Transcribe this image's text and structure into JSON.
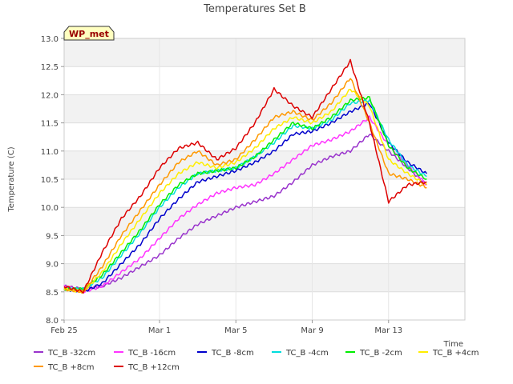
{
  "chart_data": {
    "type": "line",
    "title": "Temperatures Set B",
    "xlabel": "Time",
    "ylabel": "Temperature (C)",
    "annotation": "WP_met",
    "xlim": [
      "2024-02-25",
      "2024-03-17"
    ],
    "ylim": [
      8.0,
      13.0
    ],
    "x_ticks": [
      {
        "date": "2024-02-25",
        "label": "Feb 25"
      },
      {
        "date": "2024-03-01",
        "label": "Mar 1"
      },
      {
        "date": "2024-03-05",
        "label": "Mar 5"
      },
      {
        "date": "2024-03-09",
        "label": "Mar 9"
      },
      {
        "date": "2024-03-13",
        "label": "Mar 13"
      }
    ],
    "y_ticks": [
      8.0,
      8.5,
      9.0,
      9.5,
      10.0,
      10.5,
      11.0,
      11.5,
      12.0,
      12.5,
      13.0
    ],
    "y_tick_labels": [
      "8.0",
      "8.5",
      "9.0",
      "9.5",
      "10.0",
      "10.5",
      "11.0",
      "11.5",
      "12.0",
      "12.5",
      "13.0"
    ],
    "grid": true,
    "legend_position": "bottom",
    "series": [
      {
        "name": "TC_B -32cm",
        "color": "#9933cc",
        "x": [
          "2024-02-25",
          "2024-02-26",
          "2024-02-27",
          "2024-02-28",
          "2024-02-29",
          "2024-03-01",
          "2024-03-02",
          "2024-03-03",
          "2024-03-04",
          "2024-03-05",
          "2024-03-06",
          "2024-03-07",
          "2024-03-08",
          "2024-03-09",
          "2024-03-10",
          "2024-03-11",
          "2024-03-12",
          "2024-03-13",
          "2024-03-14",
          "2024-03-15"
        ],
        "y": [
          8.6,
          8.55,
          8.6,
          8.75,
          8.95,
          9.15,
          9.45,
          9.7,
          9.85,
          10.0,
          10.1,
          10.2,
          10.45,
          10.75,
          10.9,
          11.0,
          11.3,
          11.0,
          10.7,
          10.4
        ]
      },
      {
        "name": "TC_B +8cm",
        "color": "#ff9900",
        "x": [
          "2024-02-25",
          "2024-02-26",
          "2024-02-27",
          "2024-02-28",
          "2024-02-29",
          "2024-03-01",
          "2024-03-02",
          "2024-03-03",
          "2024-03-04",
          "2024-03-05",
          "2024-03-06",
          "2024-03-07",
          "2024-03-08",
          "2024-03-09",
          "2024-03-10",
          "2024-03-11",
          "2024-03-12",
          "2024-03-13",
          "2024-03-14",
          "2024-03-15"
        ],
        "y": [
          8.55,
          8.5,
          8.95,
          9.5,
          9.95,
          10.4,
          10.8,
          11.0,
          10.75,
          10.85,
          11.2,
          11.6,
          11.7,
          11.55,
          11.85,
          12.3,
          11.5,
          10.6,
          10.5,
          10.35
        ]
      },
      {
        "name": "TC_B -16cm",
        "color": "#ff33ff",
        "x": [
          "2024-02-25",
          "2024-02-26",
          "2024-02-27",
          "2024-02-28",
          "2024-02-29",
          "2024-03-01",
          "2024-03-02",
          "2024-03-03",
          "2024-03-04",
          "2024-03-05",
          "2024-03-06",
          "2024-03-07",
          "2024-03-08",
          "2024-03-09",
          "2024-03-10",
          "2024-03-11",
          "2024-03-12",
          "2024-03-13",
          "2024-03-14",
          "2024-03-15"
        ],
        "y": [
          8.6,
          8.5,
          8.6,
          8.85,
          9.1,
          9.45,
          9.8,
          10.05,
          10.25,
          10.35,
          10.4,
          10.6,
          10.85,
          11.1,
          11.2,
          11.35,
          11.6,
          11.1,
          10.75,
          10.4
        ]
      },
      {
        "name": "TC_B +12cm",
        "color": "#dd0000",
        "x": [
          "2024-02-25",
          "2024-02-26",
          "2024-02-27",
          "2024-02-28",
          "2024-02-29",
          "2024-03-01",
          "2024-03-02",
          "2024-03-03",
          "2024-03-04",
          "2024-03-05",
          "2024-03-06",
          "2024-03-07",
          "2024-03-08",
          "2024-03-09",
          "2024-03-10",
          "2024-03-11",
          "2024-03-12",
          "2024-03-13",
          "2024-03-14",
          "2024-03-15"
        ],
        "y": [
          8.6,
          8.5,
          9.2,
          9.8,
          10.2,
          10.7,
          11.05,
          11.15,
          10.85,
          11.05,
          11.5,
          12.1,
          11.8,
          11.6,
          12.1,
          12.6,
          11.5,
          10.1,
          10.4,
          10.45
        ]
      },
      {
        "name": "TC_B -8cm",
        "color": "#0000cc",
        "x": [
          "2024-02-25",
          "2024-02-26",
          "2024-02-27",
          "2024-02-28",
          "2024-02-29",
          "2024-03-01",
          "2024-03-02",
          "2024-03-03",
          "2024-03-04",
          "2024-03-05",
          "2024-03-06",
          "2024-03-07",
          "2024-03-08",
          "2024-03-09",
          "2024-03-10",
          "2024-03-11",
          "2024-03-12",
          "2024-03-13",
          "2024-03-14",
          "2024-03-15"
        ],
        "y": [
          8.55,
          8.5,
          8.65,
          9.0,
          9.35,
          9.8,
          10.15,
          10.45,
          10.55,
          10.65,
          10.8,
          11.0,
          11.3,
          11.35,
          11.5,
          11.7,
          11.85,
          11.15,
          10.8,
          10.6
        ]
      },
      {
        "name": "TC_B -4cm",
        "color": "#00dddd",
        "x": [
          "2024-02-25",
          "2024-02-26",
          "2024-02-27",
          "2024-02-28",
          "2024-02-29",
          "2024-03-01",
          "2024-03-02",
          "2024-03-03",
          "2024-03-04",
          "2024-03-05",
          "2024-03-06",
          "2024-03-07",
          "2024-03-08",
          "2024-03-09",
          "2024-03-10",
          "2024-03-11",
          "2024-03-12",
          "2024-03-13",
          "2024-03-14",
          "2024-03-15"
        ],
        "y": [
          8.55,
          8.55,
          8.75,
          9.15,
          9.55,
          10.0,
          10.35,
          10.6,
          10.65,
          10.7,
          10.9,
          11.15,
          11.45,
          11.4,
          11.55,
          11.85,
          11.9,
          11.2,
          10.75,
          10.55
        ]
      },
      {
        "name": "TC_B -2cm",
        "color": "#00ee00",
        "x": [
          "2024-02-25",
          "2024-02-26",
          "2024-02-27",
          "2024-02-28",
          "2024-02-29",
          "2024-03-01",
          "2024-03-02",
          "2024-03-03",
          "2024-03-04",
          "2024-03-05",
          "2024-03-06",
          "2024-03-07",
          "2024-03-08",
          "2024-03-09",
          "2024-03-10",
          "2024-03-11",
          "2024-03-12",
          "2024-03-13",
          "2024-03-14",
          "2024-03-15"
        ],
        "y": [
          8.55,
          8.55,
          8.8,
          9.2,
          9.6,
          10.05,
          10.4,
          10.6,
          10.65,
          10.7,
          10.9,
          11.2,
          11.5,
          11.4,
          11.6,
          11.9,
          11.95,
          11.1,
          10.7,
          10.5
        ]
      },
      {
        "name": "TC_B +4cm",
        "color": "#ffee00",
        "x": [
          "2024-02-25",
          "2024-02-26",
          "2024-02-27",
          "2024-02-28",
          "2024-02-29",
          "2024-03-01",
          "2024-03-02",
          "2024-03-03",
          "2024-03-04",
          "2024-03-05",
          "2024-03-06",
          "2024-03-07",
          "2024-03-08",
          "2024-03-09",
          "2024-03-10",
          "2024-03-11",
          "2024-03-12",
          "2024-03-13",
          "2024-03-14",
          "2024-03-15"
        ],
        "y": [
          8.55,
          8.5,
          8.85,
          9.35,
          9.8,
          10.25,
          10.6,
          10.8,
          10.7,
          10.8,
          11.05,
          11.4,
          11.6,
          11.5,
          11.7,
          12.1,
          11.8,
          10.85,
          10.6,
          10.4
        ]
      }
    ]
  }
}
